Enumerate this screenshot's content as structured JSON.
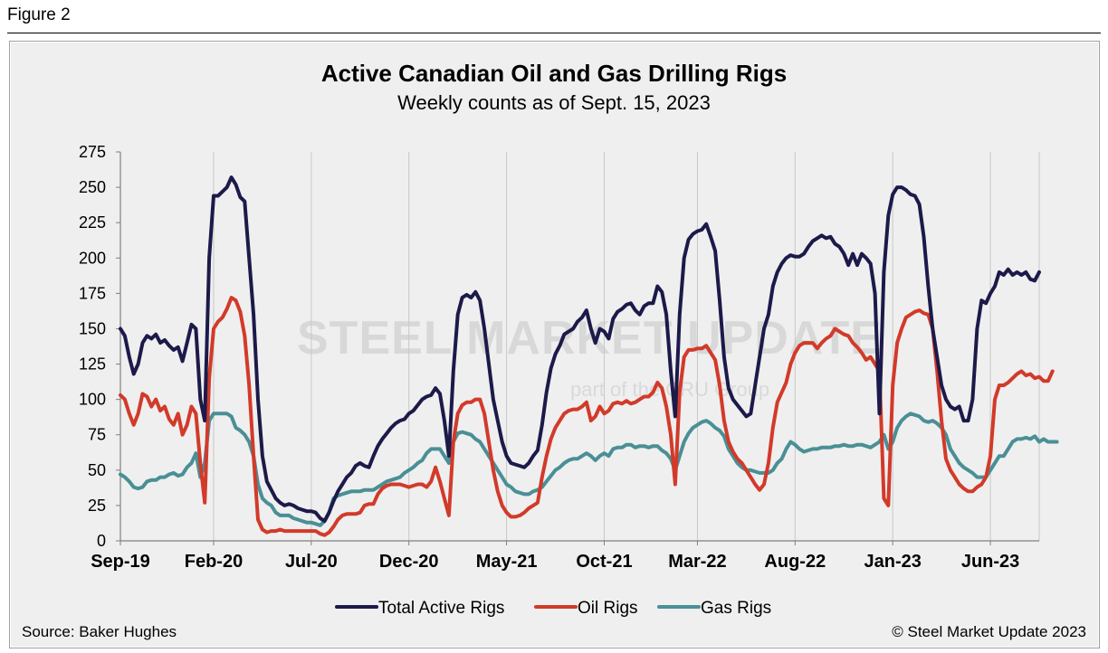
{
  "figure_label": "Figure 2",
  "source": "Source: Baker Hughes",
  "copyright": "© Steel Market Update 2023",
  "watermark": {
    "main": "STEEL MARKET UPDATE",
    "sub": "part of the CRU Group"
  },
  "chart_data": {
    "type": "line",
    "title": "Active Canadian Oil and Gas Drilling Rigs",
    "subtitle": "Weekly counts as of Sept. 15, 2023",
    "xlabel": "",
    "ylabel": "",
    "ylim": [
      0,
      275
    ],
    "yticks": [
      0,
      25,
      50,
      75,
      100,
      125,
      150,
      175,
      200,
      225,
      250,
      275
    ],
    "x_tick_labels": [
      "Sep-19",
      "Feb-20",
      "Jul-20",
      "Dec-20",
      "May-21",
      "Oct-21",
      "Mar-22",
      "Aug-22",
      "Jan-23",
      "Jun-23"
    ],
    "x_tick_week_index": [
      0,
      21,
      43,
      65,
      87,
      109,
      130,
      152,
      174,
      196
    ],
    "frequency": "weekly",
    "grid": "vertical",
    "legend_position": "bottom",
    "series": [
      {
        "name": "Total Active Rigs",
        "color": "#1c1a4a",
        "values": [
          150,
          145,
          130,
          118,
          125,
          140,
          145,
          143,
          146,
          140,
          142,
          138,
          135,
          137,
          127,
          140,
          153,
          150,
          100,
          85,
          200,
          244,
          244,
          247,
          250,
          257,
          252,
          243,
          240,
          200,
          160,
          100,
          60,
          42,
          36,
          30,
          27,
          25,
          26,
          25,
          23,
          22,
          21,
          21,
          20,
          16,
          14,
          20,
          28,
          35,
          40,
          45,
          48,
          53,
          55,
          53,
          52,
          60,
          67,
          72,
          76,
          80,
          83,
          85,
          86,
          90,
          92,
          96,
          100,
          102,
          103,
          108,
          104,
          85,
          60,
          120,
          160,
          172,
          174,
          172,
          176,
          170,
          150,
          125,
          100,
          85,
          70,
          60,
          55,
          54,
          53,
          52,
          55,
          60,
          64,
          82,
          105,
          122,
          132,
          138,
          146,
          148,
          150,
          155,
          158,
          163,
          150,
          140,
          150,
          148,
          143,
          157,
          162,
          164,
          167,
          168,
          163,
          160,
          166,
          168,
          168,
          180,
          176,
          160,
          120,
          88,
          160,
          200,
          213,
          217,
          219,
          220,
          224,
          215,
          205,
          170,
          130,
          108,
          100,
          96,
          92,
          88,
          90,
          110,
          130,
          150,
          160,
          180,
          190,
          196,
          200,
          202,
          201,
          201,
          203,
          208,
          212,
          214,
          216,
          214,
          215,
          210,
          208,
          203,
          195,
          203,
          195,
          203,
          200,
          196,
          175,
          90,
          190,
          230,
          245,
          250,
          250,
          248,
          245,
          244,
          238,
          215,
          180,
          150,
          130,
          110,
          100,
          95,
          93,
          95,
          85,
          85,
          100,
          150,
          170,
          168,
          175,
          180,
          190,
          188,
          192,
          188,
          190,
          188,
          190,
          185,
          184,
          190
        ]
      },
      {
        "name": "Oil Rigs",
        "color": "#d23a2a",
        "values": [
          103,
          100,
          90,
          82,
          90,
          104,
          102,
          95,
          100,
          92,
          95,
          86,
          82,
          90,
          75,
          82,
          95,
          90,
          55,
          27,
          115,
          150,
          155,
          158,
          164,
          172,
          170,
          162,
          145,
          110,
          60,
          15,
          8,
          6,
          7,
          7,
          8,
          7,
          7,
          7,
          7,
          7,
          7,
          7,
          7,
          5,
          4,
          6,
          10,
          15,
          18,
          19,
          19,
          19,
          20,
          25,
          26,
          26,
          33,
          37,
          39,
          40,
          40,
          40,
          39,
          38,
          39,
          40,
          40,
          38,
          42,
          52,
          42,
          30,
          18,
          70,
          90,
          96,
          98,
          98,
          100,
          100,
          90,
          70,
          50,
          35,
          25,
          20,
          17,
          17,
          18,
          20,
          23,
          25,
          27,
          45,
          60,
          72,
          80,
          85,
          90,
          92,
          93,
          93,
          95,
          98,
          85,
          88,
          95,
          90,
          92,
          97,
          98,
          97,
          99,
          97,
          98,
          100,
          102,
          102,
          105,
          112,
          108,
          95,
          75,
          40,
          105,
          130,
          135,
          135,
          136,
          136,
          138,
          133,
          128,
          110,
          85,
          70,
          63,
          58,
          55,
          50,
          45,
          40,
          36,
          40,
          55,
          80,
          98,
          105,
          112,
          125,
          133,
          138,
          140,
          140,
          140,
          136,
          140,
          143,
          145,
          150,
          148,
          146,
          145,
          140,
          137,
          133,
          128,
          130,
          125,
          120,
          30,
          25,
          110,
          140,
          150,
          158,
          160,
          162,
          163,
          161,
          160,
          150,
          120,
          85,
          58,
          50,
          45,
          40,
          37,
          35,
          35,
          38,
          40,
          45,
          60,
          100,
          110,
          110,
          112,
          115,
          118,
          120,
          117,
          118,
          115,
          116,
          113,
          113,
          120
        ]
      },
      {
        "name": "Gas Rigs",
        "color": "#4a8f96",
        "values": [
          47,
          45,
          42,
          38,
          37,
          38,
          42,
          43,
          43,
          45,
          45,
          47,
          48,
          46,
          47,
          52,
          55,
          62,
          45,
          55,
          85,
          90,
          90,
          90,
          90,
          88,
          80,
          78,
          75,
          70,
          60,
          40,
          30,
          27,
          25,
          20,
          18,
          18,
          18,
          16,
          15,
          14,
          13,
          13,
          12,
          11,
          14,
          20,
          30,
          32,
          33,
          34,
          35,
          35,
          35,
          36,
          36,
          36,
          38,
          40,
          42,
          43,
          44,
          45,
          48,
          50,
          52,
          55,
          57,
          62,
          65,
          65,
          65,
          60,
          55,
          70,
          76,
          77,
          76,
          75,
          72,
          70,
          65,
          60,
          55,
          50,
          45,
          40,
          38,
          35,
          34,
          33,
          33,
          35,
          36,
          38,
          42,
          46,
          50,
          52,
          55,
          57,
          58,
          58,
          60,
          62,
          60,
          57,
          60,
          62,
          60,
          65,
          66,
          66,
          68,
          68,
          66,
          67,
          67,
          66,
          67,
          67,
          64,
          62,
          58,
          50,
          60,
          70,
          76,
          80,
          82,
          84,
          85,
          83,
          80,
          78,
          74,
          65,
          60,
          55,
          52,
          50,
          50,
          49,
          48,
          48,
          48,
          50,
          55,
          58,
          65,
          70,
          68,
          65,
          63,
          64,
          65,
          65,
          66,
          66,
          66,
          67,
          67,
          68,
          67,
          67,
          68,
          68,
          67,
          66,
          68,
          70,
          75,
          65,
          70,
          80,
          85,
          88,
          90,
          89,
          88,
          85,
          84,
          85,
          83,
          80,
          75,
          65,
          60,
          55,
          52,
          50,
          48,
          45,
          45,
          45,
          50,
          55,
          60,
          60,
          65,
          70,
          72,
          72,
          73,
          72,
          74,
          70,
          72,
          70,
          70,
          70
        ]
      }
    ]
  }
}
